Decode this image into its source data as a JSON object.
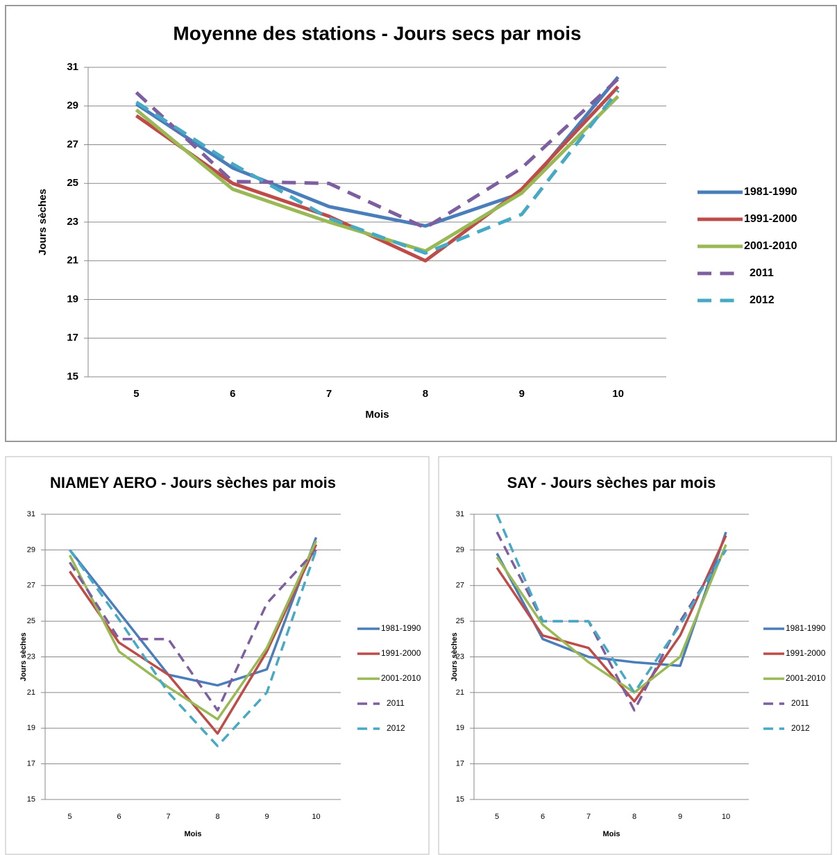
{
  "chart_data": [
    {
      "type": "line",
      "title": "Moyenne des stations - Jours secs par mois",
      "x_label": "Mois",
      "y_label": "Jours sèches",
      "categories": [
        5,
        6,
        7,
        8,
        9,
        10
      ],
      "ylim": [
        15,
        31
      ],
      "yticks": [
        15,
        17,
        19,
        21,
        23,
        25,
        27,
        29,
        31
      ],
      "grid": true,
      "legend": "right",
      "series": [
        {
          "name": "1981-1990",
          "color": "#4a7ebb",
          "line_style": "solid",
          "values": [
            29.1,
            25.8,
            23.8,
            22.8,
            24.5,
            30.5
          ]
        },
        {
          "name": "1991-2000",
          "color": "#be4b48",
          "line_style": "solid",
          "values": [
            28.5,
            25.0,
            23.3,
            21.0,
            24.7,
            30.0
          ]
        },
        {
          "name": "2001-2010",
          "color": "#98b954",
          "line_style": "solid",
          "values": [
            28.8,
            24.7,
            23.0,
            21.5,
            24.5,
            29.5
          ]
        },
        {
          "name": "2011",
          "color": "#7d5fa0",
          "line_style": "dashed",
          "values": [
            29.7,
            25.1,
            25.0,
            22.7,
            25.8,
            30.4
          ]
        },
        {
          "name": "2012",
          "color": "#46aac5",
          "line_style": "dashed",
          "values": [
            29.2,
            26.0,
            23.2,
            21.4,
            23.4,
            29.8
          ]
        }
      ]
    },
    {
      "type": "line",
      "title": "NIAMEY AERO - Jours sèches par mois",
      "x_label": "Mois",
      "y_label": "Jours sèches",
      "categories": [
        5,
        6,
        7,
        8,
        9,
        10
      ],
      "ylim": [
        15,
        31
      ],
      "yticks": [
        15,
        17,
        19,
        21,
        23,
        25,
        27,
        29,
        31
      ],
      "grid": true,
      "legend": "right",
      "series": [
        {
          "name": "1981-1990",
          "color": "#4a7ebb",
          "line_style": "solid",
          "values": [
            29.0,
            25.5,
            22.0,
            21.4,
            22.3,
            29.7
          ]
        },
        {
          "name": "1991-2000",
          "color": "#be4b48",
          "line_style": "solid",
          "values": [
            27.8,
            23.8,
            22.0,
            18.7,
            23.3,
            29.3
          ]
        },
        {
          "name": "2001-2010",
          "color": "#98b954",
          "line_style": "solid",
          "values": [
            28.7,
            23.3,
            21.3,
            19.5,
            23.5,
            29.5
          ]
        },
        {
          "name": "2011",
          "color": "#7d5fa0",
          "line_style": "dashed",
          "values": [
            28.3,
            24.0,
            24.0,
            20.0,
            26.0,
            29.0
          ]
        },
        {
          "name": "2012",
          "color": "#46aac5",
          "line_style": "dashed",
          "values": [
            29.0,
            25.1,
            21.0,
            18.0,
            21.0,
            29.0
          ]
        }
      ]
    },
    {
      "type": "line",
      "title": "SAY - Jours sèches par mois",
      "x_label": "Mois",
      "y_label": "Jours sèches",
      "categories": [
        5,
        6,
        7,
        8,
        9,
        10
      ],
      "ylim": [
        15,
        31
      ],
      "yticks": [
        15,
        17,
        19,
        21,
        23,
        25,
        27,
        29,
        31
      ],
      "grid": true,
      "legend": "right",
      "series": [
        {
          "name": "1981-1990",
          "color": "#4a7ebb",
          "line_style": "solid",
          "values": [
            28.8,
            24.0,
            23.0,
            22.7,
            22.5,
            30.0
          ]
        },
        {
          "name": "1991-2000",
          "color": "#be4b48",
          "line_style": "solid",
          "values": [
            28.0,
            24.2,
            23.5,
            20.5,
            24.2,
            29.8
          ]
        },
        {
          "name": "2001-2010",
          "color": "#98b954",
          "line_style": "solid",
          "values": [
            28.6,
            24.8,
            22.7,
            21.0,
            23.0,
            29.3
          ]
        },
        {
          "name": "2011",
          "color": "#7d5fa0",
          "line_style": "dashed",
          "values": [
            30.0,
            25.0,
            25.0,
            20.0,
            25.0,
            29.0
          ]
        },
        {
          "name": "2012",
          "color": "#46aac5",
          "line_style": "dashed",
          "values": [
            31.0,
            25.0,
            25.0,
            21.0,
            24.8,
            29.0
          ]
        }
      ]
    }
  ]
}
